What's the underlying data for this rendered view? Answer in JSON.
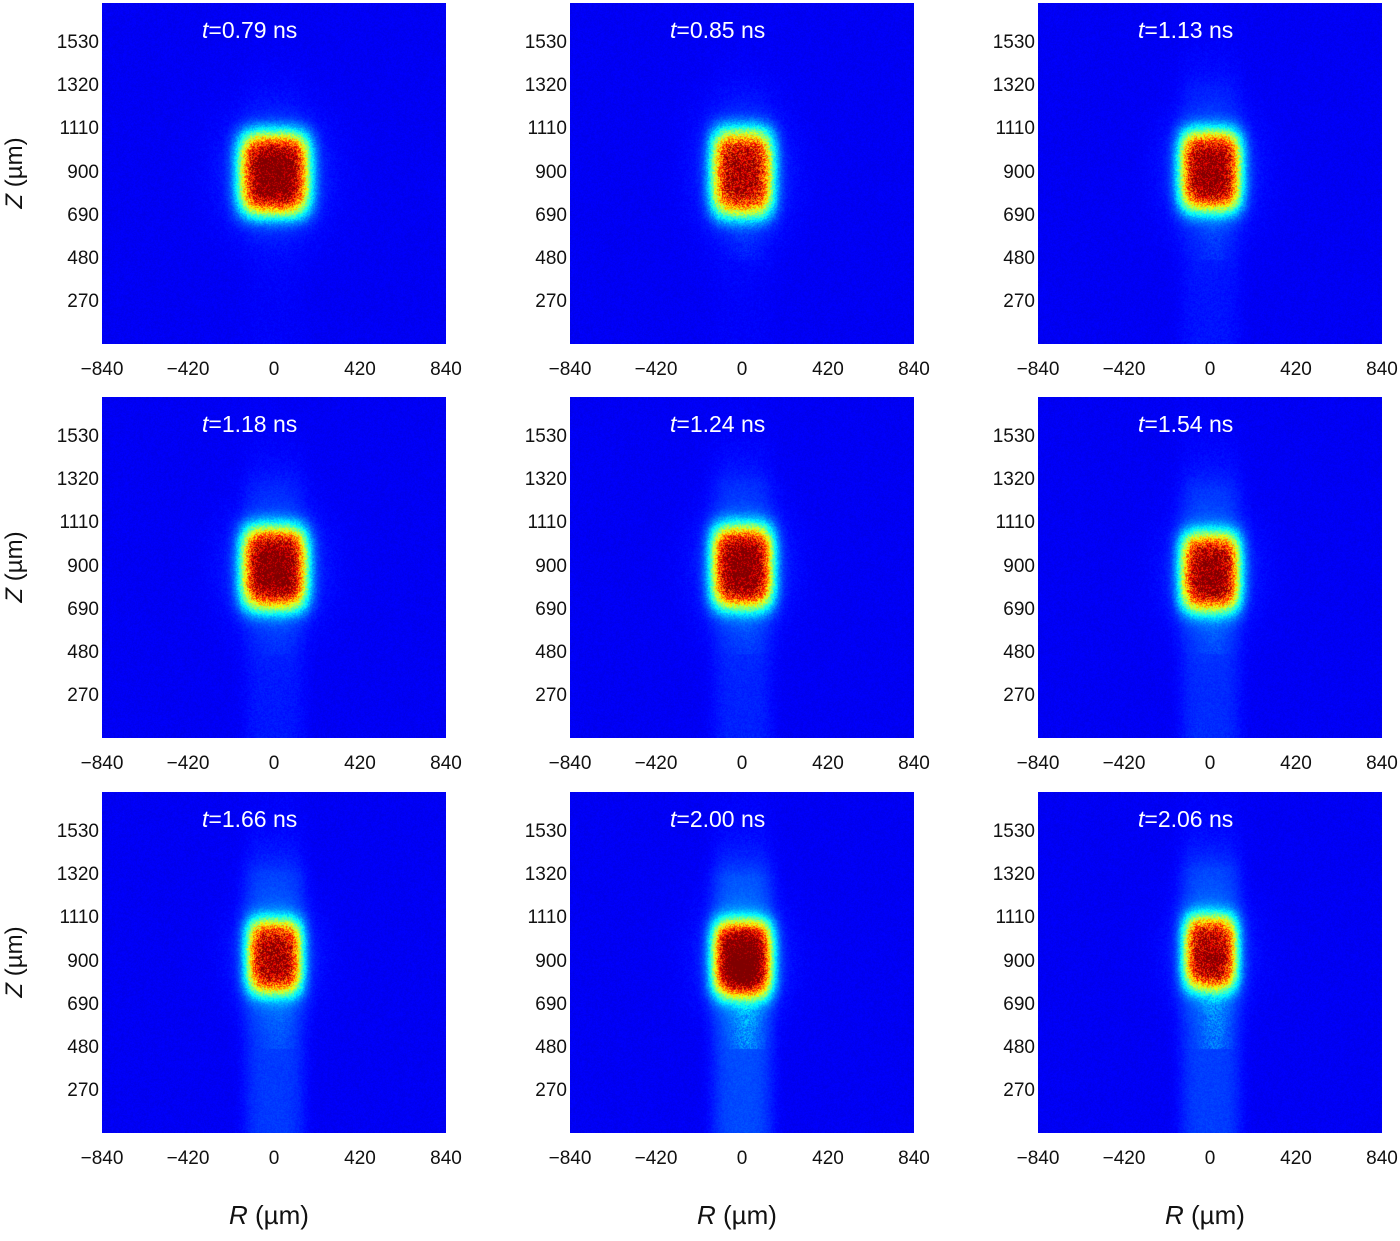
{
  "chart_data": {
    "type": "heatmap",
    "layout": "3x3 grid",
    "colormap": "jet",
    "background_color": "#1b1f80",
    "xlabel": "R (µm)",
    "ylabel": "Z (µm)",
    "xlim": [
      -840,
      840
    ],
    "ylim": [
      70,
      1730
    ],
    "xticks": [
      "−840",
      "−420",
      "0",
      "420",
      "840"
    ],
    "xtick_values": [
      -840,
      -420,
      0,
      420,
      840
    ],
    "yticks": [
      "1530",
      "1320",
      "1110",
      "900",
      "690",
      "480",
      "270"
    ],
    "ytick_values": [
      1530,
      1320,
      1110,
      900,
      690,
      480,
      270
    ],
    "panels": [
      {
        "title": "t=0.79 ns",
        "core_z": 900,
        "core_r_half": 170,
        "core_z_half": 200,
        "peak": 1.0,
        "plume": 0.03,
        "tail": 0
      },
      {
        "title": "t=0.85 ns",
        "core_z": 905,
        "core_r_half": 150,
        "core_z_half": 210,
        "peak": 0.88,
        "plume": 0.03,
        "tail": 0.1
      },
      {
        "title": "t=1.13 ns",
        "core_z": 915,
        "core_r_half": 150,
        "core_z_half": 195,
        "peak": 0.92,
        "plume": 0.12,
        "tail": 0.1
      },
      {
        "title": "t=1.18 ns",
        "core_z": 900,
        "core_r_half": 160,
        "core_z_half": 200,
        "peak": 0.96,
        "plume": 0.14,
        "tail": 0.05
      },
      {
        "title": "t=1.24 ns",
        "core_z": 905,
        "core_r_half": 150,
        "core_z_half": 200,
        "peak": 0.93,
        "plume": 0.18,
        "tail": 0.08
      },
      {
        "title": "t=1.54 ns",
        "core_z": 880,
        "core_r_half": 145,
        "core_z_half": 190,
        "peak": 0.88,
        "plume": 0.22,
        "tail": 0.1
      },
      {
        "title": "t=1.66 ns",
        "core_z": 930,
        "core_r_half": 135,
        "core_z_half": 180,
        "peak": 0.82,
        "plume": 0.28,
        "tail": 0.1
      },
      {
        "title": "t=2.00 ns",
        "core_z": 920,
        "core_r_half": 145,
        "core_z_half": 185,
        "peak": 0.95,
        "plume": 0.35,
        "tail": 0.35
      },
      {
        "title": "t=2.06 ns",
        "core_z": 950,
        "core_r_half": 130,
        "core_z_half": 180,
        "peak": 0.82,
        "plume": 0.3,
        "tail": 0.3
      }
    ]
  }
}
